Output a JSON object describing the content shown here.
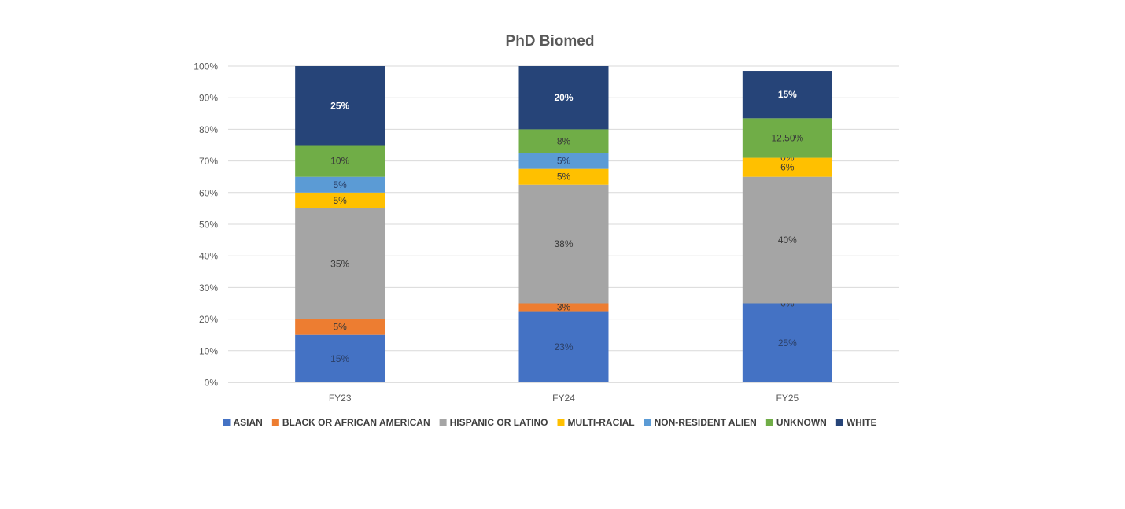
{
  "chart_data": {
    "type": "bar",
    "stacked": true,
    "title": "PhD Biomed",
    "xlabel": "",
    "ylabel": "",
    "categories": [
      "FY23",
      "FY24",
      "FY25"
    ],
    "ylim": [
      0,
      100
    ],
    "yticks": [
      0,
      10,
      20,
      30,
      40,
      50,
      60,
      70,
      80,
      90,
      100
    ],
    "ytick_labels": [
      "0%",
      "10%",
      "20%",
      "30%",
      "40%",
      "50%",
      "60%",
      "70%",
      "80%",
      "90%",
      "100%"
    ],
    "grid": true,
    "legend_position": "bottom",
    "series": [
      {
        "name": "ASIAN",
        "color": "#4472C4",
        "label_color": "#2b3f66",
        "values": [
          15,
          22.5,
          25
        ],
        "labels": [
          "15%",
          "23%",
          "25%"
        ]
      },
      {
        "name": "BLACK OR AFRICAN AMERICAN",
        "color": "#ED7D31",
        "label_color": "#3a3a3a",
        "values": [
          5,
          2.5,
          0
        ],
        "labels": [
          "5%",
          "3%",
          "0%"
        ]
      },
      {
        "name": "HISPANIC OR LATINO",
        "color": "#A5A5A5",
        "label_color": "#3a3a3a",
        "values": [
          35,
          37.5,
          40
        ],
        "labels": [
          "35%",
          "38%",
          "40%"
        ]
      },
      {
        "name": "MULTI-RACIAL",
        "color": "#FFC000",
        "label_color": "#3a3a3a",
        "values": [
          5,
          5,
          6
        ],
        "labels": [
          "5%",
          "5%",
          "6%"
        ]
      },
      {
        "name": "NON-RESIDENT ALIEN",
        "color": "#5B9BD5",
        "label_color": "#2b3f66",
        "values": [
          5,
          5,
          0
        ],
        "labels": [
          "5%",
          "5%",
          "0%"
        ]
      },
      {
        "name": "UNKNOWN",
        "color": "#70AD47",
        "label_color": "#3a3a3a",
        "values": [
          10,
          7.5,
          12.5
        ],
        "labels": [
          "10%",
          "8%",
          "12.50%"
        ]
      },
      {
        "name": "WHITE",
        "color": "#264478",
        "label_color": "#ffffff",
        "values": [
          25,
          20,
          15
        ],
        "labels": [
          "25%",
          "20%",
          "15%"
        ]
      }
    ]
  }
}
